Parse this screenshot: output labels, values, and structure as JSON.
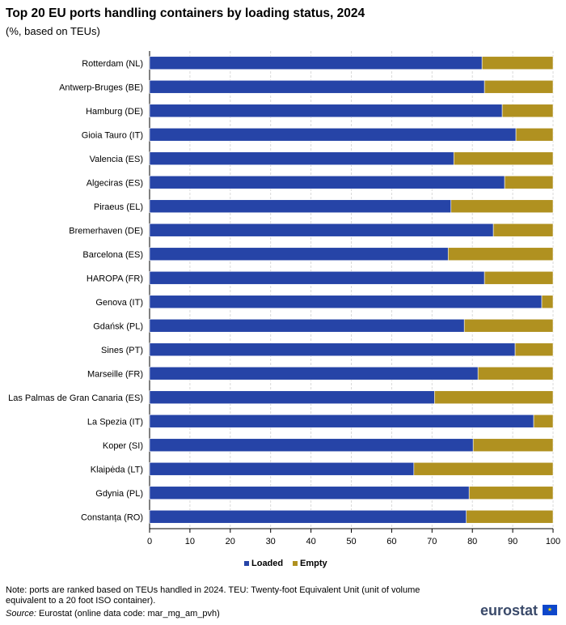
{
  "chart_data": {
    "type": "bar",
    "orientation": "horizontal",
    "stacked": true,
    "title": "Top 20 EU ports handling containers by loading status, 2024",
    "subtitle": "(%, based on TEUs)",
    "categories": [
      "Rotterdam (NL)",
      "Antwerp-Bruges (BE)",
      "Hamburg (DE)",
      "Gioia Tauro (IT)",
      "Valencia (ES)",
      "Algeciras (ES)",
      "Piraeus (EL)",
      "Bremerhaven (DE)",
      "Barcelona (ES)",
      "HAROPA (FR)",
      "Genova (IT)",
      "Gdańsk (PL)",
      "Sines (PT)",
      "Marseille (FR)",
      "Las Palmas de Gran Canaria (ES)",
      "La Spezia (IT)",
      "Koper (SI)",
      "Klaipėda (LT)",
      "Gdynia (PL)",
      "Constanța (RO)"
    ],
    "series": [
      {
        "name": "Loaded",
        "color": "#2644a7",
        "values": [
          82.4,
          83.0,
          87.4,
          90.8,
          75.4,
          88.0,
          74.7,
          85.2,
          74.0,
          83.0,
          97.2,
          78.0,
          90.6,
          81.4,
          70.6,
          95.2,
          80.2,
          65.5,
          79.2,
          78.5
        ]
      },
      {
        "name": "Empty",
        "color": "#b09120",
        "values": [
          17.6,
          17.0,
          12.6,
          9.2,
          24.6,
          12.0,
          25.3,
          14.8,
          26.0,
          17.0,
          2.8,
          22.0,
          9.4,
          18.6,
          29.4,
          4.8,
          19.8,
          34.5,
          20.8,
          21.5
        ]
      }
    ],
    "xlim": [
      0,
      100
    ],
    "xticks": [
      "0",
      "10",
      "20",
      "30",
      "40",
      "50",
      "60",
      "70",
      "80",
      "90",
      "100"
    ],
    "grid": true,
    "legend_position": "bottom"
  },
  "note": "Note: ports are ranked based on TEUs handled in 2024. TEU: Twenty-foot Equivalent Unit (unit of volume equivalent to a 20 foot ISO container).",
  "source_label": "Source:",
  "source_text": " Eurostat (online data code: mar_mg_am_pvh)",
  "logo": "eurostat"
}
